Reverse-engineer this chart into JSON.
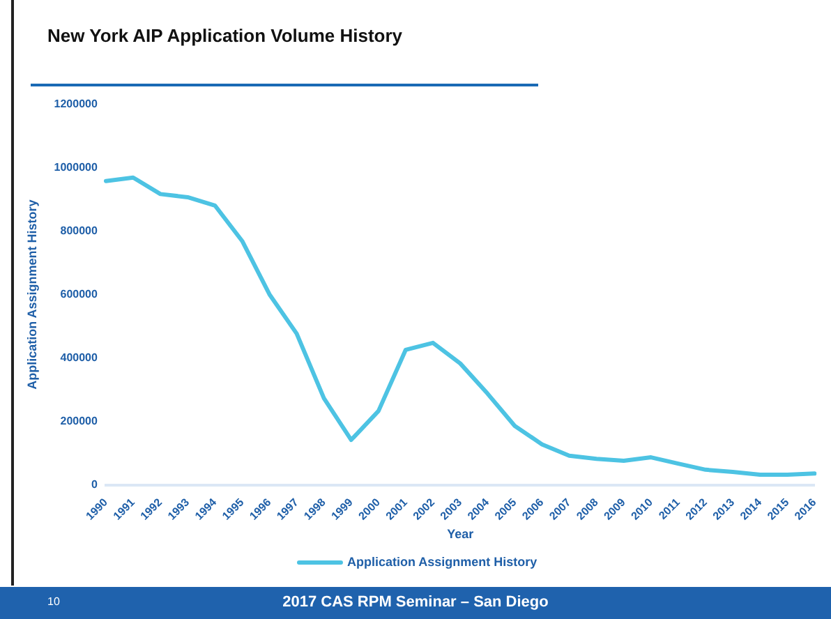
{
  "chart_data": {
    "type": "line",
    "title": "New York AIP Application Volume History",
    "xlabel": "Year",
    "ylabel": "Application Assignment History",
    "categories": [
      "1990",
      "1991",
      "1992",
      "1993",
      "1994",
      "1995",
      "1996",
      "1997",
      "1998",
      "1999",
      "2000",
      "2001",
      "2002",
      "2003",
      "2004",
      "2005",
      "2006",
      "2007",
      "2008",
      "2009",
      "2010",
      "2011",
      "2012",
      "2013",
      "2014",
      "2015",
      "2016"
    ],
    "series": [
      {
        "name": "Application Assignment History",
        "color": "#4dc3e3",
        "values": [
          958000,
          969000,
          917000,
          907000,
          881000,
          769000,
          601000,
          477000,
          273000,
          142000,
          233000,
          426000,
          448000,
          383000,
          288000,
          186000,
          128000,
          92000,
          82000,
          76000,
          87000,
          67000,
          48000,
          41000,
          32000,
          32000,
          36000
        ]
      }
    ],
    "ylim": [
      0,
      1200000
    ],
    "yticks": [
      0,
      200000,
      400000,
      600000,
      800000,
      1000000,
      1200000
    ],
    "grid": false,
    "legend": "bottom",
    "marker": "none",
    "line_style": "solid",
    "annotations": [
      "10",
      "2017 CAS RPM Seminar – San Diego"
    ]
  }
}
